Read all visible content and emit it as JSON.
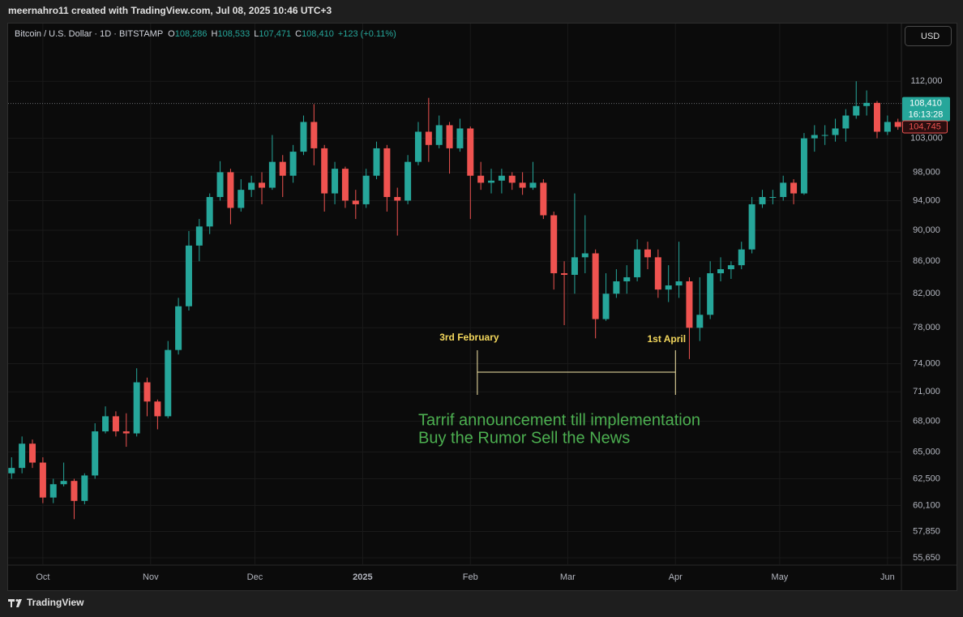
{
  "header": {
    "title": "meernahro11 created with TradingView.com, Jul 08, 2025 10:46 UTC+3"
  },
  "footer": {
    "brand": "TradingView"
  },
  "chart_data": {
    "type": "candlestick",
    "symbol": "Bitcoin / U.S. Dollar · 1D · BITSTAMP",
    "ohlc_legend": [
      {
        "key": "O",
        "value": "108,286"
      },
      {
        "key": "H",
        "value": "108,533"
      },
      {
        "key": "L",
        "value": "107,471"
      },
      {
        "key": "C",
        "value": "108,410"
      }
    ],
    "change": "+123 (+0.11%)",
    "currency": "USD",
    "log_scale": true,
    "grid": true,
    "up_color": "#26a69a",
    "down_color": "#ef5350",
    "xlim": [
      "2024-09-21",
      "2025-06-05"
    ],
    "xticks": [
      {
        "value": "2024-10-01",
        "label": "Oct"
      },
      {
        "value": "2024-11-01",
        "label": "Nov"
      },
      {
        "value": "2024-12-01",
        "label": "Dec"
      },
      {
        "value": "2025-01-01",
        "label": "2025"
      },
      {
        "value": "2025-02-01",
        "label": "Feb"
      },
      {
        "value": "2025-03-01",
        "label": "Mar"
      },
      {
        "value": "2025-04-01",
        "label": "Apr"
      },
      {
        "value": "2025-05-01",
        "label": "May"
      },
      {
        "value": "2025-06-01",
        "label": "Jun"
      }
    ],
    "ylim": [
      55060,
      121900
    ],
    "yticks": [
      {
        "value": 112000,
        "label": "112,000"
      },
      {
        "value": 103000,
        "label": "103,000"
      },
      {
        "value": 98000,
        "label": "98,000"
      },
      {
        "value": 94000,
        "label": "94,000"
      },
      {
        "value": 90000,
        "label": "90,000"
      },
      {
        "value": 86000,
        "label": "86,000"
      },
      {
        "value": 82000,
        "label": "82,000"
      },
      {
        "value": 78000,
        "label": "78,000"
      },
      {
        "value": 74000,
        "label": "74,000"
      },
      {
        "value": 71000,
        "label": "71,000"
      },
      {
        "value": 68000,
        "label": "68,000"
      },
      {
        "value": 65000,
        "label": "65,000"
      },
      {
        "value": 62500,
        "label": "62,500"
      },
      {
        "value": 60100,
        "label": "60,100"
      },
      {
        "value": 57850,
        "label": "57,850"
      },
      {
        "value": 55650,
        "label": "55,650"
      }
    ],
    "x": [
      "2024-09-22",
      "2024-09-25",
      "2024-09-28",
      "2024-10-01",
      "2024-10-04",
      "2024-10-07",
      "2024-10-10",
      "2024-10-13",
      "2024-10-16",
      "2024-10-19",
      "2024-10-22",
      "2024-10-25",
      "2024-10-28",
      "2024-10-31",
      "2024-11-03",
      "2024-11-06",
      "2024-11-09",
      "2024-11-12",
      "2024-11-15",
      "2024-11-18",
      "2024-11-21",
      "2024-11-24",
      "2024-11-27",
      "2024-11-30",
      "2024-12-03",
      "2024-12-06",
      "2024-12-09",
      "2024-12-12",
      "2024-12-15",
      "2024-12-18",
      "2024-12-21",
      "2024-12-24",
      "2024-12-27",
      "2024-12-30",
      "2025-01-02",
      "2025-01-05",
      "2025-01-08",
      "2025-01-11",
      "2025-01-14",
      "2025-01-17",
      "2025-01-20",
      "2025-01-23",
      "2025-01-26",
      "2025-01-29",
      "2025-02-01",
      "2025-02-04",
      "2025-02-07",
      "2025-02-10",
      "2025-02-13",
      "2025-02-16",
      "2025-02-19",
      "2025-02-22",
      "2025-02-25",
      "2025-02-28",
      "2025-03-03",
      "2025-03-06",
      "2025-03-09",
      "2025-03-12",
      "2025-03-15",
      "2025-03-18",
      "2025-03-21",
      "2025-03-24",
      "2025-03-27",
      "2025-03-30",
      "2025-04-02",
      "2025-04-05",
      "2025-04-08",
      "2025-04-11",
      "2025-04-14",
      "2025-04-17",
      "2025-04-20",
      "2025-04-23",
      "2025-04-26",
      "2025-04-29",
      "2025-05-02",
      "2025-05-05",
      "2025-05-08",
      "2025-05-11",
      "2025-05-14",
      "2025-05-17",
      "2025-05-20",
      "2025-05-23",
      "2025-05-26",
      "2025-05-29",
      "2025-06-01",
      "2025-06-04"
    ],
    "open": [
      63000,
      63500,
      65800,
      64000,
      60800,
      62000,
      62300,
      60500,
      62800,
      67000,
      68500,
      67000,
      66800,
      72000,
      70000,
      68500,
      75500,
      80500,
      88000,
      90500,
      94500,
      98000,
      93000,
      95500,
      96500,
      95800,
      99500,
      97500,
      101000,
      105500,
      101500,
      95000,
      98500,
      94000,
      93500,
      97500,
      101500,
      94500,
      94000,
      99500,
      104000,
      102000,
      105000,
      101500,
      104500,
      97500,
      96500,
      96800,
      97500,
      96500,
      95800,
      96500,
      92000,
      84500,
      84300,
      86500,
      87000,
      79000,
      82000,
      83500,
      84000,
      87500,
      86500,
      82500,
      83000,
      83500,
      78000,
      79500,
      84500,
      85000,
      85500,
      87500,
      93500,
      94500,
      94500,
      96500,
      95000,
      103000,
      103500,
      103500,
      104500,
      106500,
      108000,
      108500,
      104000,
      105500
    ],
    "high": [
      64500,
      66500,
      66200,
      64500,
      62500,
      64000,
      62500,
      63000,
      67800,
      69500,
      69000,
      68800,
      73500,
      72500,
      70200,
      76500,
      81500,
      89900,
      91500,
      95000,
      99600,
      98500,
      97000,
      97500,
      98000,
      103500,
      100500,
      102000,
      106500,
      108300,
      102000,
      99500,
      98800,
      95500,
      98500,
      102500,
      102000,
      95800,
      100500,
      105500,
      109300,
      106500,
      105500,
      106000,
      104800,
      99500,
      98500,
      98500,
      98000,
      98000,
      99500,
      97000,
      92500,
      86000,
      95000,
      92000,
      87500,
      84500,
      85000,
      85500,
      88800,
      88500,
      87500,
      85500,
      88500,
      84000,
      84000,
      86000,
      86500,
      86000,
      88500,
      94500,
      95500,
      95500,
      97500,
      97000,
      103800,
      105000,
      105000,
      106000,
      107500,
      112000,
      110500,
      108800,
      106500,
      106000
    ],
    "low": [
      62500,
      63000,
      63500,
      60300,
      60300,
      61800,
      58900,
      60200,
      62500,
      66800,
      66500,
      65500,
      66500,
      68500,
      67200,
      68300,
      75000,
      80000,
      86000,
      89500,
      94000,
      90800,
      92500,
      94500,
      93500,
      95500,
      94500,
      96500,
      100500,
      99000,
      92500,
      93500,
      93000,
      91500,
      93000,
      97000,
      92500,
      89300,
      93500,
      99000,
      99500,
      101500,
      97800,
      101000,
      91500,
      95500,
      95000,
      95000,
      95500,
      94800,
      95500,
      91500,
      82500,
      78300,
      82000,
      84500,
      76800,
      78800,
      81500,
      82000,
      83500,
      85000,
      81500,
      81000,
      81500,
      74500,
      76500,
      79000,
      83500,
      83800,
      85000,
      87000,
      93000,
      93500,
      94000,
      93500,
      94800,
      101000,
      102000,
      102500,
      102500,
      106000,
      106500,
      103000,
      103500,
      104300
    ],
    "close": [
      63500,
      65800,
      64000,
      60800,
      62000,
      62300,
      60500,
      62800,
      67000,
      68500,
      67000,
      66800,
      72000,
      70000,
      68500,
      75500,
      80500,
      88000,
      90500,
      94500,
      98000,
      93000,
      95500,
      96500,
      95800,
      99500,
      97500,
      101000,
      105500,
      101500,
      95000,
      98500,
      94000,
      93500,
      97500,
      101500,
      94500,
      94000,
      99500,
      104000,
      102000,
      105000,
      101500,
      104500,
      97500,
      96500,
      96800,
      97500,
      96500,
      95800,
      96500,
      92000,
      84500,
      84300,
      86500,
      87000,
      79000,
      82000,
      83500,
      84000,
      87500,
      86500,
      82500,
      83000,
      83500,
      78000,
      79500,
      84500,
      85000,
      85500,
      87500,
      93500,
      94500,
      94500,
      96500,
      95000,
      103000,
      103500,
      103500,
      104500,
      106500,
      108000,
      108500,
      104000,
      105500,
      104745
    ],
    "price_lines": [
      {
        "value": 108410,
        "label": "108,410",
        "color": "#26a69a",
        "countdown": "16:13:28"
      },
      {
        "value": 104745,
        "label": "104,745",
        "color": "#ef5350"
      }
    ],
    "range_annotation": {
      "start": "2025-02-03",
      "end": "2025-04-01",
      "start_label": "3rd February",
      "end_label": "1st April",
      "color": "#f5e7a8"
    },
    "notes": [
      "Tarrif announcement till implementation",
      "Buy the Rumor Sell the News"
    ],
    "notes_color": "#4caf50"
  }
}
